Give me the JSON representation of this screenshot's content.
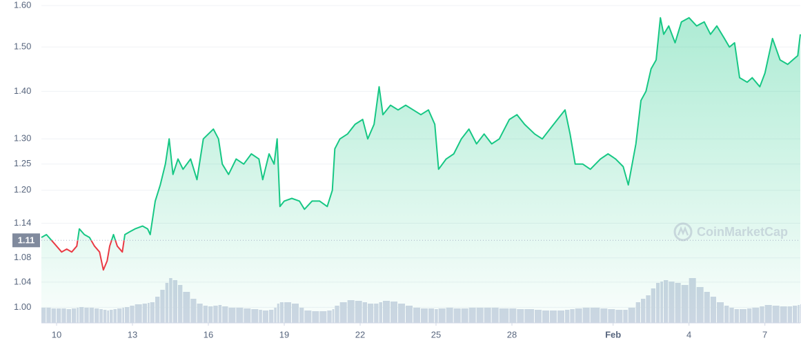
{
  "chart_data": {
    "type": "line",
    "log_scale": true,
    "grid": true,
    "color": "#16c784",
    "below_color": "#ea3943",
    "volume_color": "#cfd6e4",
    "watermark": "CoinMarketCap",
    "reference_value": 1.11,
    "xlim": [
      9.4,
      39.4
    ],
    "ylim": [
      0.976,
      1.614
    ],
    "xticks": [
      10,
      13,
      16,
      19,
      22,
      25,
      28,
      {
        "value": 32,
        "label": "Feb"
      },
      {
        "value": 35,
        "label": "4"
      },
      {
        "value": 38,
        "label": "7"
      }
    ],
    "yticks": [
      {
        "value": 1.0,
        "label": "1.00"
      },
      1.04,
      1.08,
      1.14,
      {
        "value": 1.2,
        "label": "1.20"
      },
      1.25,
      {
        "value": 1.3,
        "label": "1.30"
      },
      {
        "value": 1.4,
        "label": "1.40"
      },
      {
        "value": 1.5,
        "label": "1.50"
      },
      {
        "value": 1.6,
        "label": "1.60"
      }
    ],
    "x": [
      9.4,
      9.6,
      9.8,
      10.0,
      10.2,
      10.4,
      10.6,
      10.8,
      10.9,
      11.1,
      11.3,
      11.5,
      11.7,
      11.85,
      12.0,
      12.1,
      12.25,
      12.4,
      12.6,
      12.7,
      12.9,
      13.1,
      13.4,
      13.6,
      13.7,
      13.9,
      14.1,
      14.3,
      14.45,
      14.6,
      14.8,
      15.0,
      15.3,
      15.55,
      15.8,
      16.0,
      16.2,
      16.4,
      16.55,
      16.8,
      17.1,
      17.4,
      17.7,
      18.0,
      18.15,
      18.4,
      18.6,
      18.72,
      18.83,
      19.0,
      19.3,
      19.6,
      19.8,
      20.1,
      20.4,
      20.7,
      20.9,
      21.0,
      21.2,
      21.5,
      21.8,
      22.1,
      22.3,
      22.55,
      22.75,
      22.9,
      23.2,
      23.5,
      23.8,
      24.1,
      24.4,
      24.7,
      24.95,
      25.1,
      25.4,
      25.7,
      26.0,
      26.3,
      26.6,
      26.9,
      27.2,
      27.5,
      27.9,
      28.2,
      28.5,
      28.9,
      29.2,
      29.5,
      29.8,
      30.1,
      30.3,
      30.5,
      30.8,
      31.1,
      31.5,
      31.8,
      32.1,
      32.4,
      32.6,
      32.9,
      33.1,
      33.3,
      33.5,
      33.7,
      33.87,
      34.0,
      34.2,
      34.45,
      34.7,
      35.0,
      35.3,
      35.6,
      35.85,
      36.1,
      36.4,
      36.6,
      36.8,
      37.0,
      37.3,
      37.5,
      37.8,
      38.0,
      38.3,
      38.6,
      38.9,
      39.1,
      39.3,
      39.4
    ],
    "values": [
      1.115,
      1.12,
      1.11,
      1.1,
      1.09,
      1.095,
      1.09,
      1.1,
      1.13,
      1.12,
      1.115,
      1.1,
      1.09,
      1.06,
      1.075,
      1.1,
      1.12,
      1.1,
      1.09,
      1.12,
      1.125,
      1.13,
      1.135,
      1.13,
      1.12,
      1.18,
      1.21,
      1.25,
      1.3,
      1.23,
      1.26,
      1.24,
      1.26,
      1.22,
      1.3,
      1.31,
      1.32,
      1.3,
      1.25,
      1.23,
      1.26,
      1.25,
      1.27,
      1.26,
      1.22,
      1.27,
      1.25,
      1.3,
      1.17,
      1.18,
      1.185,
      1.18,
      1.165,
      1.18,
      1.18,
      1.17,
      1.2,
      1.28,
      1.3,
      1.31,
      1.33,
      1.34,
      1.3,
      1.33,
      1.41,
      1.35,
      1.37,
      1.36,
      1.37,
      1.36,
      1.35,
      1.36,
      1.33,
      1.24,
      1.26,
      1.27,
      1.3,
      1.32,
      1.29,
      1.31,
      1.29,
      1.3,
      1.34,
      1.35,
      1.33,
      1.31,
      1.3,
      1.32,
      1.34,
      1.36,
      1.31,
      1.25,
      1.25,
      1.24,
      1.26,
      1.27,
      1.26,
      1.245,
      1.21,
      1.29,
      1.38,
      1.4,
      1.45,
      1.47,
      1.57,
      1.53,
      1.55,
      1.51,
      1.56,
      1.57,
      1.55,
      1.56,
      1.53,
      1.55,
      1.52,
      1.5,
      1.51,
      1.43,
      1.42,
      1.43,
      1.41,
      1.44,
      1.52,
      1.47,
      1.46,
      1.47,
      1.48,
      1.53
    ],
    "volume": [
      22,
      22,
      21,
      21,
      21,
      20,
      21,
      22,
      23,
      22,
      22,
      21,
      20,
      19,
      18,
      19,
      20,
      21,
      22,
      23,
      25,
      27,
      28,
      29,
      30,
      38,
      48,
      58,
      65,
      62,
      55,
      45,
      35,
      28,
      25,
      24,
      25,
      26,
      24,
      22,
      22,
      21,
      20,
      19,
      18,
      19,
      22,
      28,
      30,
      30,
      28,
      22,
      18,
      17,
      17,
      18,
      20,
      25,
      30,
      33,
      32,
      30,
      28,
      28,
      30,
      32,
      31,
      28,
      25,
      22,
      21,
      21,
      20,
      21,
      22,
      21,
      21,
      22,
      22,
      22,
      22,
      21,
      21,
      20,
      20,
      19,
      18,
      18,
      18,
      19,
      20,
      21,
      22,
      22,
      21,
      20,
      19,
      19,
      22,
      30,
      35,
      40,
      50,
      58,
      60,
      62,
      60,
      58,
      55,
      65,
      52,
      45,
      38,
      30,
      25,
      22,
      20,
      20,
      21,
      22,
      24,
      26,
      25,
      24,
      24,
      25,
      26,
      27
    ]
  }
}
